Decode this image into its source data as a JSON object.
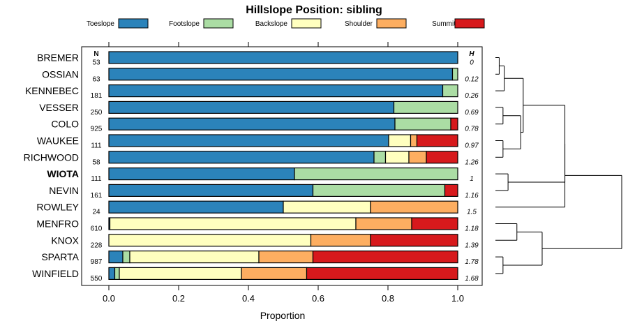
{
  "chart_data": {
    "type": "bar",
    "subtype": "horizontal-stacked-proportion",
    "title": "Hillslope Position: sibling",
    "xlabel": "Proportion",
    "ylabel": "",
    "xlim": [
      0,
      1
    ],
    "x_ticks": [
      "0.0",
      "0.2",
      "0.4",
      "0.6",
      "0.8",
      "1.0"
    ],
    "x_tick_values": [
      0,
      0.2,
      0.4,
      0.6,
      0.8,
      1.0
    ],
    "n_header": "N",
    "h_header": "H",
    "legend": [
      {
        "name": "Toeslope",
        "color": "#2b83ba"
      },
      {
        "name": "Footslope",
        "color": "#abdda4"
      },
      {
        "name": "Backslope",
        "color": "#ffffbf"
      },
      {
        "name": "Shoulder",
        "color": "#fdae61"
      },
      {
        "name": "Summit",
        "color": "#d7191c"
      }
    ],
    "categories": [
      "BREMER",
      "OSSIAN",
      "KENNEBEC",
      "VESSER",
      "COLO",
      "WAUKEE",
      "RICHWOOD",
      "WIOTA",
      "NEVIN",
      "ROWLEY",
      "MENFRO",
      "KNOX",
      "SPARTA",
      "WINFIELD"
    ],
    "highlight": "WIOTA",
    "rows": [
      {
        "label": "BREMER",
        "n": "53",
        "h": "0",
        "values": [
          1.0,
          0,
          0,
          0,
          0
        ]
      },
      {
        "label": "OSSIAN",
        "n": "63",
        "h": "0.12",
        "values": [
          0.985,
          0.015,
          0,
          0,
          0
        ]
      },
      {
        "label": "KENNEBEC",
        "n": "181",
        "h": "0.26",
        "values": [
          0.957,
          0.043,
          0,
          0,
          0
        ]
      },
      {
        "label": "VESSER",
        "n": "250",
        "h": "0.69",
        "values": [
          0.817,
          0.183,
          0,
          0,
          0
        ]
      },
      {
        "label": "COLO",
        "n": "925",
        "h": "0.78",
        "values": [
          0.82,
          0.16,
          0,
          0,
          0.02
        ]
      },
      {
        "label": "WAUKEE",
        "n": "111",
        "h": "0.97",
        "values": [
          0.802,
          0,
          0.063,
          0.018,
          0.117
        ]
      },
      {
        "label": "RICHWOOD",
        "n": "58",
        "h": "1.26",
        "values": [
          0.76,
          0.033,
          0.067,
          0.05,
          0.09
        ]
      },
      {
        "label": "WIOTA",
        "n": "111",
        "h": "1",
        "values": [
          0.532,
          0.468,
          0,
          0,
          0
        ]
      },
      {
        "label": "NEVIN",
        "n": "161",
        "h": "1.16",
        "values": [
          0.585,
          0.378,
          0,
          0,
          0.037
        ]
      },
      {
        "label": "ROWLEY",
        "n": "24",
        "h": "1.5",
        "values": [
          0.5,
          0,
          0.25,
          0.25,
          0
        ]
      },
      {
        "label": "MENFRO",
        "n": "610",
        "h": "1.18",
        "values": [
          0.003,
          0,
          0.705,
          0.16,
          0.132
        ]
      },
      {
        "label": "KNOX",
        "n": "228",
        "h": "1.39",
        "values": [
          0,
          0,
          0.579,
          0.171,
          0.25
        ]
      },
      {
        "label": "SPARTA",
        "n": "987",
        "h": "1.78",
        "values": [
          0.04,
          0.02,
          0.37,
          0.155,
          0.415
        ]
      },
      {
        "label": "WINFIELD",
        "n": "550",
        "h": "1.68",
        "values": [
          0.017,
          0.013,
          0.35,
          0.187,
          0.433
        ]
      }
    ],
    "dendrogram": {
      "leaf_order": [
        "BREMER",
        "OSSIAN",
        "KENNEBEC",
        "VESSER",
        "COLO",
        "WAUKEE",
        "RICHWOOD",
        "WIOTA",
        "NEVIN",
        "ROWLEY",
        "MENFRO",
        "KNOX",
        "SPARTA",
        "WINFIELD"
      ],
      "merges": [
        {
          "a": "L0",
          "b": "L1",
          "height": 0.03,
          "id": "m1"
        },
        {
          "a": "m1",
          "b": "L2",
          "height": 0.07,
          "id": "m2"
        },
        {
          "a": "L3",
          "b": "L4",
          "height": 0.06,
          "id": "m3"
        },
        {
          "a": "L5",
          "b": "L6",
          "height": 0.06,
          "id": "m4"
        },
        {
          "a": "m3",
          "b": "m4",
          "height": 0.2,
          "id": "m5"
        },
        {
          "a": "m2",
          "b": "m5",
          "height": 0.22,
          "id": "m6"
        },
        {
          "a": "L7",
          "b": "L8",
          "height": 0.1,
          "id": "m7"
        },
        {
          "a": "m6",
          "b": "m7",
          "height": 0.55,
          "id": "m8"
        },
        {
          "a": "m8",
          "b": "L9",
          "height": 0.55,
          "id": "m9"
        },
        {
          "a": "L10",
          "b": "L11",
          "height": 0.17,
          "id": "m10"
        },
        {
          "a": "L12",
          "b": "L13",
          "height": 0.06,
          "id": "m11"
        },
        {
          "a": "m10",
          "b": "m11",
          "height": 0.37,
          "id": "m12"
        },
        {
          "a": "m9",
          "b": "m12",
          "height": 1.0,
          "id": "m13"
        }
      ]
    }
  }
}
